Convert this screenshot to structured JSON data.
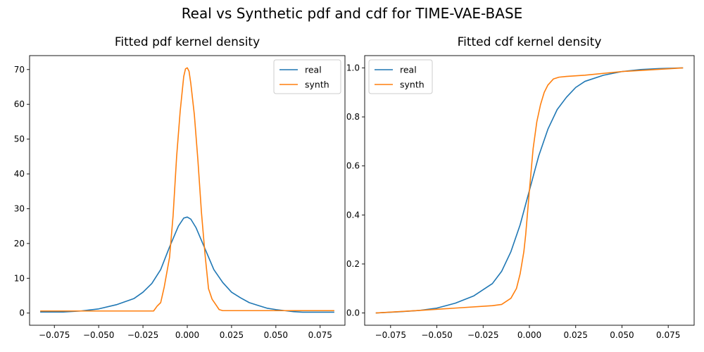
{
  "figure": {
    "title": "Real vs Synthetic pdf and cdf for TIME-VAE-BASE"
  },
  "colors": {
    "real": "#1f77b4",
    "synth": "#ff7f0e",
    "axis": "#000000",
    "legend_border": "#cccccc"
  },
  "chart_data": [
    {
      "type": "line",
      "title": "Fitted pdf kernel density",
      "xlabel": "",
      "ylabel": "",
      "xlim": [
        -0.089,
        0.089
      ],
      "ylim": [
        -3.5,
        74
      ],
      "grid": false,
      "legend_position": "top-right",
      "x_ticks": [
        -0.075,
        -0.05,
        -0.025,
        0.0,
        0.025,
        0.05,
        0.075
      ],
      "x_tick_labels": [
        "−0.075",
        "−0.050",
        "−0.025",
        "0.000",
        "0.025",
        "0.050",
        "0.075"
      ],
      "y_ticks": [
        0,
        10,
        20,
        30,
        40,
        50,
        60,
        70
      ],
      "y_tick_labels": [
        "0",
        "10",
        "20",
        "30",
        "40",
        "50",
        "60",
        "70"
      ],
      "series": [
        {
          "name": "real",
          "color": "#1f77b4",
          "x": [
            -0.083,
            -0.07,
            -0.06,
            -0.05,
            -0.04,
            -0.03,
            -0.025,
            -0.02,
            -0.015,
            -0.01,
            -0.005,
            -0.002,
            0.0,
            0.002,
            0.005,
            0.01,
            0.015,
            0.02,
            0.025,
            0.03,
            0.035,
            0.04,
            0.045,
            0.05,
            0.055,
            0.06,
            0.065,
            0.07,
            0.083
          ],
          "y": [
            0.3,
            0.3,
            0.6,
            1.2,
            2.4,
            4.2,
            6.0,
            8.5,
            12.5,
            19.0,
            25.0,
            27.3,
            27.6,
            27.0,
            24.5,
            18.5,
            12.5,
            8.8,
            6.0,
            4.4,
            3.0,
            2.2,
            1.4,
            1.0,
            0.7,
            0.4,
            0.25,
            0.25,
            0.25
          ]
        },
        {
          "name": "synth",
          "color": "#ff7f0e",
          "x": [
            -0.083,
            -0.03,
            -0.019,
            -0.017,
            -0.015,
            -0.013,
            -0.01,
            -0.008,
            -0.006,
            -0.004,
            -0.002,
            -0.001,
            0.0,
            0.001,
            0.002,
            0.004,
            0.006,
            0.008,
            0.01,
            0.012,
            0.014,
            0.016,
            0.018,
            0.02,
            0.03,
            0.083
          ],
          "y": [
            0.6,
            0.6,
            0.6,
            2.0,
            3.0,
            7.5,
            16.0,
            28.0,
            45.0,
            58.0,
            68.0,
            70.2,
            70.5,
            69.5,
            66.0,
            57.0,
            44.0,
            29.0,
            17.0,
            7.0,
            4.0,
            2.5,
            1.0,
            0.7,
            0.7,
            0.7
          ]
        }
      ]
    },
    {
      "type": "line",
      "title": "Fitted cdf kernel density",
      "xlabel": "",
      "ylabel": "",
      "xlim": [
        -0.089,
        0.089
      ],
      "ylim": [
        -0.05,
        1.05
      ],
      "grid": false,
      "legend_position": "top-left",
      "x_ticks": [
        -0.075,
        -0.05,
        -0.025,
        0.0,
        0.025,
        0.05,
        0.075
      ],
      "x_tick_labels": [
        "−0.075",
        "−0.050",
        "−0.025",
        "0.000",
        "0.025",
        "0.050",
        "0.075"
      ],
      "y_ticks": [
        0.0,
        0.2,
        0.4,
        0.6,
        0.8,
        1.0
      ],
      "y_tick_labels": [
        "0.0",
        "0.2",
        "0.4",
        "0.6",
        "0.8",
        "1.0"
      ],
      "series": [
        {
          "name": "real",
          "color": "#1f77b4",
          "x": [
            -0.083,
            -0.07,
            -0.06,
            -0.05,
            -0.04,
            -0.03,
            -0.02,
            -0.015,
            -0.01,
            -0.005,
            0.0,
            0.005,
            0.01,
            0.015,
            0.02,
            0.025,
            0.03,
            0.04,
            0.05,
            0.06,
            0.07,
            0.083
          ],
          "y": [
            0.0,
            0.005,
            0.01,
            0.02,
            0.04,
            0.07,
            0.12,
            0.17,
            0.25,
            0.36,
            0.5,
            0.64,
            0.75,
            0.83,
            0.88,
            0.92,
            0.945,
            0.97,
            0.985,
            0.993,
            0.997,
            1.0
          ]
        },
        {
          "name": "synth",
          "color": "#ff7f0e",
          "x": [
            -0.083,
            -0.06,
            -0.04,
            -0.02,
            -0.015,
            -0.01,
            -0.007,
            -0.005,
            -0.003,
            -0.002,
            0.0,
            0.002,
            0.004,
            0.006,
            0.008,
            0.01,
            0.013,
            0.016,
            0.02,
            0.03,
            0.05,
            0.083
          ],
          "y": [
            0.0,
            0.01,
            0.02,
            0.03,
            0.035,
            0.06,
            0.1,
            0.16,
            0.25,
            0.32,
            0.5,
            0.67,
            0.78,
            0.85,
            0.9,
            0.93,
            0.955,
            0.962,
            0.965,
            0.97,
            0.985,
            1.0
          ]
        }
      ]
    }
  ]
}
